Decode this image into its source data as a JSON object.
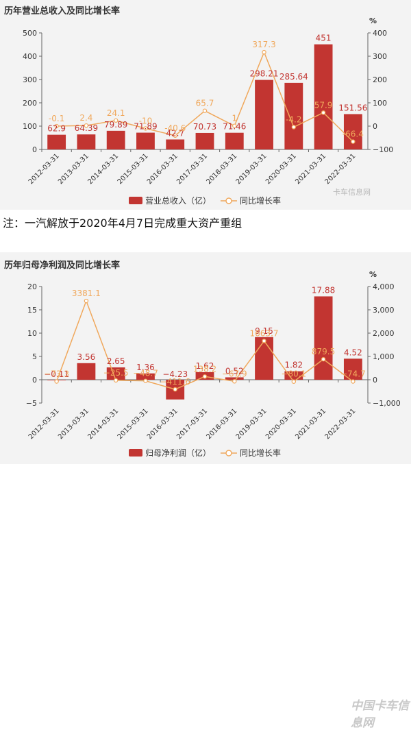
{
  "chart_data": [
    {
      "type": "bar",
      "title": "历年营业总收入及同比增长率",
      "categories": [
        "2012-03-31",
        "2013-03-31",
        "2014-03-31",
        "2015-03-31",
        "2016-03-31",
        "2017-03-31",
        "2018-03-31",
        "2019-03-31",
        "2020-03-31",
        "2021-03-31",
        "2022-03-31"
      ],
      "series": [
        {
          "name": "营业总收入（亿）",
          "type": "bar",
          "axis": "left",
          "values": [
            62.9,
            64.39,
            79.89,
            71.89,
            42.7,
            70.73,
            71.46,
            298.21,
            285.64,
            451,
            151.56
          ],
          "labels": [
            "62.9",
            "64.39",
            "79.89",
            "71.89",
            "42.7",
            "70.73",
            "71.46",
            "298.21",
            "285.64",
            "451",
            "151.56"
          ]
        },
        {
          "name": "同比增长率",
          "type": "line",
          "axis": "right",
          "values": [
            -0.1,
            2.4,
            24.1,
            -10,
            -40.6,
            65.7,
            1,
            317.3,
            -4.2,
            57.9,
            -66.4
          ],
          "labels": [
            "-0.1",
            "2.4",
            "24.1",
            "-10",
            "-40.6",
            "65.7",
            "1",
            "317.3",
            "-4.2",
            "57.9",
            "-66.4"
          ]
        }
      ],
      "ylim": [
        0,
        500
      ],
      "y_ticks": [
        "0",
        "100",
        "200",
        "300",
        "400",
        "500"
      ],
      "y2lim": [
        -100,
        400
      ],
      "y2_ticks": [
        "−100",
        "0",
        "100",
        "200",
        "300",
        "400"
      ],
      "y2_unit": "%",
      "legend": "bottom-center",
      "grid": false,
      "bar_color": "#c23531",
      "line_color": "#f0a85c"
    },
    {
      "type": "bar",
      "title": "历年归母净利润及同比增长率",
      "categories": [
        "2012-03-31",
        "2013-03-31",
        "2014-03-31",
        "2015-03-31",
        "2016-03-31",
        "2017-03-31",
        "2018-03-31",
        "2019-03-31",
        "2020-03-31",
        "2021-03-31",
        "2022-03-31"
      ],
      "series": [
        {
          "name": "归母净利润（亿）",
          "type": "bar",
          "axis": "left",
          "values": [
            -0.11,
            3.56,
            2.65,
            1.36,
            -4.23,
            1.62,
            0.52,
            9.15,
            1.82,
            17.88,
            4.52
          ],
          "labels": [
            "−0.11",
            "3.56",
            "2.65",
            "1.36",
            "−4.23",
            "1.62",
            "0.52",
            "9.15",
            "1.82",
            "17.88",
            "4.52"
          ]
        },
        {
          "name": "同比增长率",
          "type": "line",
          "axis": "right",
          "values": [
            -73.3,
            3381.1,
            -25.5,
            -48.7,
            -411.6,
            138.2,
            -67.9,
            1663.7,
            -80.1,
            879.5,
            -74.7
          ],
          "labels": [
            "−73.3",
            "3381.1",
            "−25.5",
            "−48.7",
            "−411.6",
            "138.2",
            "−67.9",
            "1663.7",
            "−80.1",
            "879.5",
            "−74.7"
          ]
        }
      ],
      "ylim": [
        -5,
        20
      ],
      "y_ticks": [
        "−5",
        "0",
        "5",
        "10",
        "15",
        "20"
      ],
      "y2lim": [
        -1000,
        4000
      ],
      "y2_ticks": [
        "−1,000",
        "0",
        "1,000",
        "2,000",
        "3,000",
        "4,000"
      ],
      "y2_unit": "%",
      "legend": "bottom-center",
      "grid": false,
      "bar_color": "#c23531",
      "line_color": "#f0a85c"
    }
  ],
  "note": "注：一汽解放于2020年4月7日完成重大资产重组",
  "watermark_top": "卡车信息网",
  "watermark_bottom": "中国卡车信息网"
}
